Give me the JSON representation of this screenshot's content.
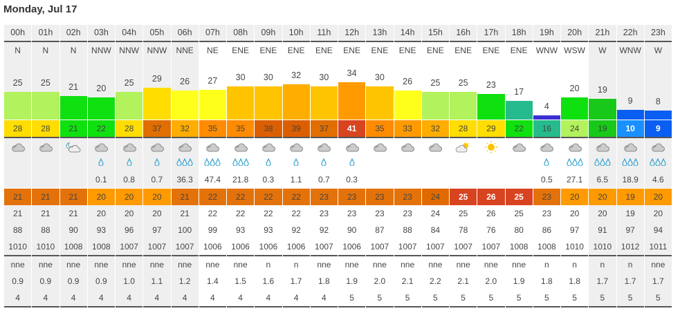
{
  "title": "Monday, Jul 17",
  "night_hours": [
    "00h",
    "01h",
    "02h",
    "03h",
    "04h",
    "05h",
    "06h",
    "21h",
    "22h",
    "23h"
  ],
  "hours": [
    "00h",
    "01h",
    "02h",
    "03h",
    "04h",
    "05h",
    "06h",
    "07h",
    "08h",
    "09h",
    "10h",
    "11h",
    "12h",
    "13h",
    "14h",
    "15h",
    "16h",
    "17h",
    "18h",
    "19h",
    "20h",
    "21h",
    "22h",
    "23h"
  ],
  "wind_dir": [
    "N",
    "N",
    "N",
    "NNW",
    "NNW",
    "NNW",
    "NNE",
    "NE",
    "ENE",
    "ENE",
    "ENE",
    "ENE",
    "ENE",
    "ENE",
    "ENE",
    "ENE",
    "ENE",
    "ENE",
    "ENE",
    "WNW",
    "WSW",
    "W",
    "WNW",
    "W"
  ],
  "wind_speed": [
    25,
    25,
    21,
    20,
    25,
    29,
    26,
    27,
    30,
    30,
    32,
    30,
    34,
    30,
    26,
    25,
    25,
    23,
    17,
    4,
    20,
    19,
    9,
    8
  ],
  "wind_gust": [
    28,
    28,
    21,
    22,
    28,
    37,
    32,
    35,
    35,
    38,
    39,
    37,
    41,
    35,
    33,
    32,
    28,
    29,
    22,
    16,
    24,
    19,
    10,
    9
  ],
  "weather_icon": [
    "cloud",
    "cloud",
    "moon-cloud",
    "cloud",
    "cloud",
    "cloud",
    "cloud",
    "cloud",
    "cloud",
    "cloud",
    "cloud",
    "cloud",
    "cloud",
    "cloud",
    "cloud",
    "cloud",
    "sun-cloud",
    "sun",
    "cloud",
    "cloud",
    "cloud",
    "cloud",
    "cloud",
    "cloud"
  ],
  "rain_drops": [
    0,
    0,
    0,
    1,
    1,
    1,
    3,
    3,
    3,
    1,
    1,
    1,
    1,
    0,
    0,
    0,
    0,
    0,
    0,
    1,
    3,
    3,
    3,
    3
  ],
  "precipitation": [
    "",
    "",
    "",
    "0.1",
    "0.8",
    "0.7",
    "36.3",
    "47.4",
    "21.8",
    "0.3",
    "1.1",
    "0.7",
    "0.3",
    "",
    "",
    "",
    "",
    "",
    "",
    "0.5",
    "27.1",
    "6.5",
    "18.9",
    "4.6"
  ],
  "temperature_bar": [
    21,
    21,
    21,
    20,
    20,
    20,
    21,
    22,
    22,
    22,
    22,
    23,
    23,
    23,
    23,
    24,
    25,
    26,
    25,
    23,
    20,
    20,
    19,
    20
  ],
  "temperature": [
    21,
    21,
    21,
    20,
    20,
    20,
    21,
    22,
    22,
    22,
    22,
    23,
    23,
    23,
    23,
    24,
    25,
    26,
    25,
    23,
    20,
    20,
    19,
    20
  ],
  "humidity": [
    88,
    88,
    90,
    93,
    96,
    97,
    100,
    99,
    93,
    93,
    92,
    92,
    90,
    87,
    88,
    84,
    78,
    76,
    80,
    86,
    97,
    91,
    97,
    94
  ],
  "pressure": [
    1010,
    1010,
    1008,
    1008,
    1007,
    1007,
    1007,
    1006,
    1006,
    1006,
    1006,
    1007,
    1006,
    1007,
    1007,
    1007,
    1007,
    1007,
    1008,
    1008,
    1010,
    1010,
    1012,
    1011
  ],
  "wave_dir": [
    "nne",
    "nne",
    "nne",
    "nne",
    "nne",
    "nne",
    "nne",
    "nne",
    "nne",
    "n",
    "n",
    "nne",
    "nne",
    "nne",
    "nne",
    "nne",
    "nne",
    "nne",
    "nne",
    "n",
    "n",
    "n",
    "n",
    "nne"
  ],
  "wave_height": [
    "0.9",
    "0.9",
    "0.9",
    "0.9",
    "1.0",
    "1.1",
    "1.2",
    "1.4",
    "1.5",
    "1.6",
    "1.7",
    "1.8",
    "1.9",
    "2.0",
    "2.1",
    "2.2",
    "2.1",
    "2.0",
    "1.9",
    "1.8",
    "1.8",
    "1.7",
    "1.7",
    "1.7"
  ],
  "wave_period": [
    4,
    4,
    4,
    4,
    4,
    4,
    4,
    4,
    4,
    4,
    4,
    4,
    5,
    5,
    5,
    5,
    5,
    5,
    5,
    5,
    5,
    5,
    5,
    5
  ],
  "drop_glyph": "💧"
}
